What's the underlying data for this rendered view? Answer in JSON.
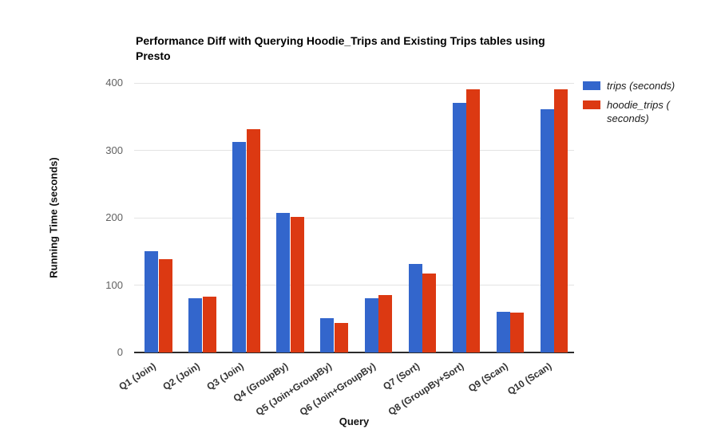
{
  "title": "Performance Diff with Querying Hoodie_Trips and Existing Trips tables using Presto",
  "axes": {
    "y_title": "Running Time (seconds)",
    "x_title": "Query",
    "y_ticks": [
      0,
      100,
      200,
      300,
      400
    ]
  },
  "chart_data": {
    "type": "bar",
    "title": "Performance Diff with Querying Hoodie_Trips and Existing Trips tables using Presto",
    "xlabel": "Query",
    "ylabel": "Running Time (seconds)",
    "ylim": [
      0,
      400
    ],
    "grid": true,
    "legend_position": "right",
    "categories": [
      "Q1 (Join)",
      "Q2 (Join)",
      "Q3 (Join)",
      "Q4 (GroupBy)",
      "Q5 (Join+GroupBy)",
      "Q6 (Join+GroupBy)",
      "Q7 (Sort)",
      "Q8 (GroupBy+Sort)",
      "Q9 (Scan)",
      "Q10 (Scan)"
    ],
    "series": [
      {
        "name": "trips (seconds)",
        "color": "#3366cc",
        "values": [
          150,
          80,
          312,
          207,
          51,
          81,
          131,
          370,
          60,
          361
        ]
      },
      {
        "name": "hoodie_trips ( seconds)",
        "color": "#dc3912",
        "values": [
          138,
          83,
          331,
          201,
          44,
          85,
          117,
          390,
          59,
          391
        ]
      }
    ]
  }
}
